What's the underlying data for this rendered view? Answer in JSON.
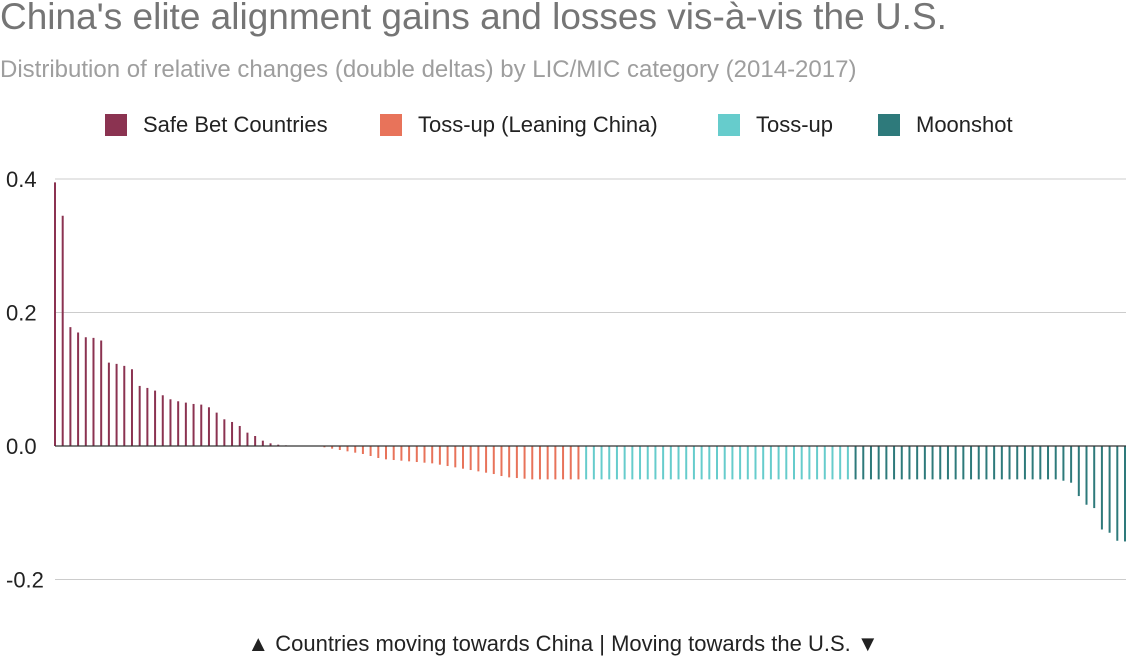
{
  "title": "China's elite alignment gains and losses vis-à-vis the U.S.",
  "subtitle": "Distribution of relative changes (double deltas) by LIC/MIC category (2014-2017)",
  "footer": "▲ Countries moving towards China  |  Moving towards the U.S. ▼",
  "chart_data": {
    "type": "bar",
    "title": "China's elite alignment gains and losses vis-à-vis the U.S.",
    "subtitle": "Distribution of relative changes (double deltas) by LIC/MIC category (2014-2017)",
    "ylim": [
      -0.2,
      0.4
    ],
    "yticks": [
      {
        "value": 0.4,
        "label": "0.4"
      },
      {
        "value": 0.2,
        "label": "0.2"
      },
      {
        "value": 0.0,
        "label": "0.0"
      },
      {
        "value": -0.2,
        "label": "-0.2"
      }
    ],
    "grid": true,
    "legend_position": "top",
    "series": [
      {
        "name": "Safe Bet Countries",
        "color": "#8b3351",
        "values": [
          0.395,
          0.345,
          0.178,
          0.17,
          0.163,
          0.162,
          0.158,
          0.125,
          0.123,
          0.12,
          0.115,
          0.09,
          0.087,
          0.083,
          0.076,
          0.07,
          0.067,
          0.065,
          0.063,
          0.062,
          0.058,
          0.05,
          0.04,
          0.036,
          0.03,
          0.02,
          0.015,
          0.008,
          0.004,
          0.002,
          0.001,
          0.0,
          0.0,
          0.0,
          0.0
        ]
      },
      {
        "name": "Toss-up (Leaning China)",
        "color": "#e8735a",
        "values": [
          -0.002,
          -0.004,
          -0.006,
          -0.008,
          -0.01,
          -0.012,
          -0.015,
          -0.018,
          -0.02,
          -0.021,
          -0.022,
          -0.023,
          -0.024,
          -0.025,
          -0.026,
          -0.028,
          -0.03,
          -0.032,
          -0.034,
          -0.036,
          -0.038,
          -0.04,
          -0.042,
          -0.045,
          -0.047,
          -0.048,
          -0.049,
          -0.05,
          -0.05,
          -0.05,
          -0.05,
          -0.05,
          -0.05,
          -0.05
        ]
      },
      {
        "name": "Toss-up",
        "color": "#66cccc",
        "values": [
          -0.05,
          -0.05,
          -0.05,
          -0.05,
          -0.05,
          -0.05,
          -0.05,
          -0.05,
          -0.05,
          -0.05,
          -0.05,
          -0.05,
          -0.05,
          -0.05,
          -0.05,
          -0.05,
          -0.05,
          -0.05,
          -0.05,
          -0.05,
          -0.05,
          -0.05,
          -0.05,
          -0.05,
          -0.05,
          -0.05,
          -0.05,
          -0.05,
          -0.05,
          -0.05,
          -0.05,
          -0.05,
          -0.05,
          -0.05,
          -0.05
        ]
      },
      {
        "name": "Moonshot",
        "color": "#2e7a7b",
        "values": [
          -0.05,
          -0.05,
          -0.05,
          -0.05,
          -0.05,
          -0.05,
          -0.05,
          -0.05,
          -0.05,
          -0.05,
          -0.05,
          -0.05,
          -0.05,
          -0.05,
          -0.05,
          -0.05,
          -0.05,
          -0.05,
          -0.05,
          -0.05,
          -0.05,
          -0.05,
          -0.05,
          -0.05,
          -0.05,
          -0.05,
          -0.05,
          -0.052,
          -0.055,
          -0.075,
          -0.088,
          -0.093,
          -0.125,
          -0.13,
          -0.142,
          -0.143
        ]
      }
    ]
  }
}
